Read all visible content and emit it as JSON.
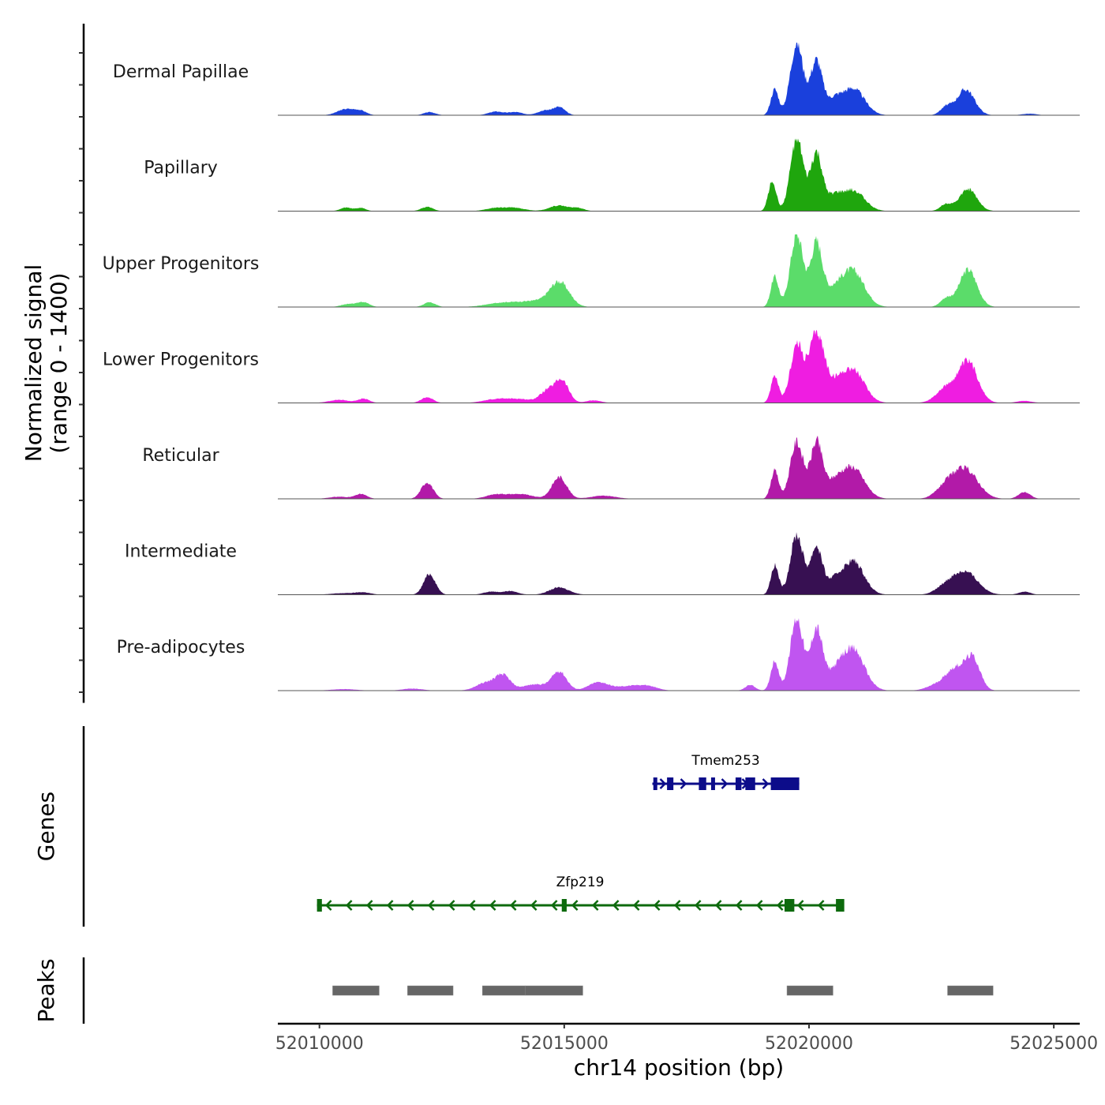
{
  "chart_data": {
    "type": "area",
    "title": "",
    "ylabel": [
      "Normalized signal",
      "(range 0 - 1400)"
    ],
    "xlabel": "chr14 position (bp)",
    "ylim": [
      0,
      1400
    ],
    "xlim": [
      52009150,
      52025530
    ],
    "x_ticks": [
      52010000,
      52015000,
      52020000,
      52025000
    ],
    "x_tick_labels": [
      "52010000",
      "52015000",
      "52020000",
      "52025000"
    ],
    "grid": false,
    "tracks": [
      {
        "name": "Dermal Papillae",
        "color": "#1a40dc",
        "peaks": [
          [
            52010550,
            120,
            180
          ],
          [
            52010850,
            70,
            120
          ],
          [
            52012250,
            60,
            120
          ],
          [
            52013600,
            70,
            150
          ],
          [
            52014000,
            60,
            150
          ],
          [
            52014600,
            90,
            150
          ],
          [
            52014900,
            150,
            120
          ],
          [
            52019300,
            500,
            80
          ],
          [
            52019750,
            1400,
            130
          ],
          [
            52020150,
            1050,
            120
          ],
          [
            52020500,
            250,
            150
          ],
          [
            52020900,
            520,
            230
          ],
          [
            52022800,
            150,
            120
          ],
          [
            52023200,
            500,
            180
          ],
          [
            52024500,
            30,
            150
          ]
        ]
      },
      {
        "name": "Papillary",
        "color": "#1fa60d",
        "peaks": [
          [
            52010550,
            70,
            120
          ],
          [
            52010850,
            60,
            100
          ],
          [
            52012200,
            80,
            120
          ],
          [
            52013600,
            60,
            200
          ],
          [
            52014000,
            60,
            200
          ],
          [
            52014900,
            110,
            200
          ],
          [
            52015300,
            50,
            120
          ],
          [
            52019250,
            580,
            80
          ],
          [
            52019750,
            1400,
            130
          ],
          [
            52020150,
            1100,
            120
          ],
          [
            52020500,
            250,
            150
          ],
          [
            52020900,
            400,
            230
          ],
          [
            52022800,
            130,
            120
          ],
          [
            52023250,
            420,
            180
          ]
        ]
      },
      {
        "name": "Upper Progenitors",
        "color": "#5bdc6a",
        "peaks": [
          [
            52010600,
            60,
            150
          ],
          [
            52010900,
            90,
            120
          ],
          [
            52012250,
            90,
            120
          ],
          [
            52013800,
            90,
            350
          ],
          [
            52014400,
            90,
            250
          ],
          [
            52014900,
            480,
            200
          ],
          [
            52019300,
            580,
            80
          ],
          [
            52019750,
            1400,
            130
          ],
          [
            52020150,
            1200,
            120
          ],
          [
            52020500,
            280,
            200
          ],
          [
            52020900,
            680,
            230
          ],
          [
            52022800,
            160,
            120
          ],
          [
            52023250,
            720,
            180
          ]
        ]
      },
      {
        "name": "Lower Progenitors",
        "color": "#ef1de1",
        "peaks": [
          [
            52010400,
            60,
            200
          ],
          [
            52010900,
            80,
            120
          ],
          [
            52012200,
            110,
            120
          ],
          [
            52013600,
            70,
            250
          ],
          [
            52014100,
            70,
            250
          ],
          [
            52014650,
            220,
            150
          ],
          [
            52014950,
            430,
            140
          ],
          [
            52015600,
            50,
            150
          ],
          [
            52019300,
            500,
            80
          ],
          [
            52019750,
            1100,
            130
          ],
          [
            52020150,
            1300,
            150
          ],
          [
            52020500,
            300,
            200
          ],
          [
            52020900,
            620,
            230
          ],
          [
            52022800,
            280,
            200
          ],
          [
            52023250,
            780,
            200
          ],
          [
            52024400,
            40,
            150
          ]
        ]
      },
      {
        "name": "Reticular",
        "color": "#b21aa8",
        "peaks": [
          [
            52010400,
            40,
            200
          ],
          [
            52010850,
            90,
            120
          ],
          [
            52012200,
            320,
            120
          ],
          [
            52013600,
            80,
            200
          ],
          [
            52014100,
            90,
            250
          ],
          [
            52014900,
            420,
            150
          ],
          [
            52015800,
            60,
            250
          ],
          [
            52019300,
            540,
            80
          ],
          [
            52019750,
            1100,
            130
          ],
          [
            52020150,
            1050,
            120
          ],
          [
            52020500,
            280,
            200
          ],
          [
            52020900,
            580,
            230
          ],
          [
            52022800,
            220,
            200
          ],
          [
            52023200,
            560,
            250
          ],
          [
            52024400,
            130,
            120
          ]
        ]
      },
      {
        "name": "Intermediate",
        "color": "#371052",
        "peaks": [
          [
            52010500,
            30,
            250
          ],
          [
            52010900,
            40,
            150
          ],
          [
            52012250,
            400,
            120
          ],
          [
            52013500,
            60,
            150
          ],
          [
            52013900,
            70,
            150
          ],
          [
            52014900,
            140,
            200
          ],
          [
            52019300,
            560,
            80
          ],
          [
            52019750,
            1150,
            130
          ],
          [
            52020150,
            920,
            120
          ],
          [
            52020500,
            220,
            150
          ],
          [
            52020900,
            650,
            220
          ],
          [
            52022800,
            150,
            200
          ],
          [
            52023200,
            430,
            250
          ],
          [
            52024400,
            60,
            120
          ]
        ]
      },
      {
        "name": "Pre-adipocytes",
        "color": "#c055f0",
        "peaks": [
          [
            52010500,
            30,
            250
          ],
          [
            52011900,
            40,
            200
          ],
          [
            52013400,
            150,
            200
          ],
          [
            52013750,
            280,
            150
          ],
          [
            52014400,
            120,
            250
          ],
          [
            52014900,
            360,
            150
          ],
          [
            52015700,
            160,
            200
          ],
          [
            52016300,
            80,
            250
          ],
          [
            52016700,
            80,
            200
          ],
          [
            52018800,
            110,
            100
          ],
          [
            52019300,
            580,
            80
          ],
          [
            52019750,
            1400,
            130
          ],
          [
            52020150,
            1150,
            120
          ],
          [
            52020500,
            280,
            200
          ],
          [
            52020900,
            780,
            230
          ],
          [
            52022600,
            100,
            200
          ],
          [
            52023000,
            420,
            200
          ],
          [
            52023350,
            580,
            150
          ]
        ]
      }
    ],
    "genes": [
      {
        "name": "Tmem253",
        "strand": "+",
        "color": "#0c0c8a",
        "start": 52016800,
        "end": 52019800,
        "exons": [
          [
            52016820,
            52016880
          ],
          [
            52017100,
            52017230
          ],
          [
            52017750,
            52017900
          ],
          [
            52018000,
            52018060
          ],
          [
            52018500,
            52018620
          ],
          [
            52018700,
            52018900
          ],
          [
            52019220,
            52019800
          ]
        ]
      },
      {
        "name": "Zfp219",
        "strand": "-",
        "color": "#0d6a0d",
        "start": 52009950,
        "end": 52020700,
        "exons": [
          [
            52009950,
            52010050
          ],
          [
            52014950,
            52015050
          ],
          [
            52019500,
            52019700
          ],
          [
            52020550,
            52020720
          ]
        ]
      }
    ],
    "peaks_track": {
      "color": "#666666",
      "regions": [
        [
          52010270,
          52011220
        ],
        [
          52011800,
          52012730
        ],
        [
          52013330,
          52014200
        ],
        [
          52014200,
          52015380
        ],
        [
          52019550,
          52020490
        ],
        [
          52022830,
          52023760
        ]
      ]
    },
    "panel_labels": {
      "genes": "Genes",
      "peaks": "Peaks"
    }
  }
}
